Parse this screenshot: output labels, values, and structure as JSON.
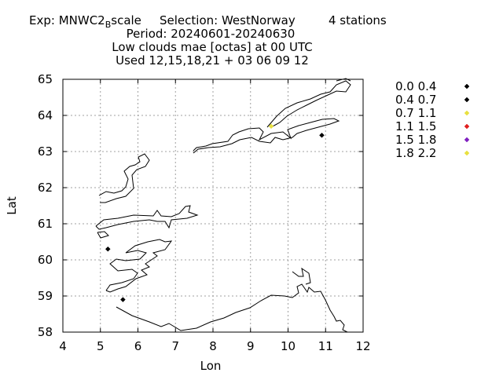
{
  "header": {
    "exp_prefix": "Exp: MNWC2",
    "exp_subscript": "B",
    "exp_suffix": "scale",
    "selection": "Selection: WestNorway",
    "stations": "4 stations",
    "period": "Period: 20240601-20240630",
    "parameter": "Low clouds mae [octas] at  00 UTC",
    "used": "Used 12,15,18,21 + 03 06 09 12"
  },
  "chart_data": {
    "type": "scatter",
    "title": "Low clouds mae [octas] at  00 UTC",
    "xlabel": "Lon",
    "ylabel": "Lat",
    "xlim": [
      4,
      12
    ],
    "ylim": [
      58,
      65
    ],
    "xticks": [
      "4",
      "5",
      "6",
      "7",
      "8",
      "9",
      "10",
      "11",
      "12"
    ],
    "yticks": [
      "58",
      "59",
      "60",
      "61",
      "62",
      "63",
      "64",
      "65"
    ],
    "grid": true,
    "legend_position": "right",
    "legend": [
      {
        "label": "0.0 0.4",
        "color": "#000000"
      },
      {
        "label": "0.4 0.7",
        "color": "#000000"
      },
      {
        "label": "0.7 1.1",
        "color": "#e8e040"
      },
      {
        "label": "1.1 1.5",
        "color": "#e02020"
      },
      {
        "label": "1.5 1.8",
        "color": "#8020c0"
      },
      {
        "label": "1.8 2.2",
        "color": "#e8e040"
      }
    ],
    "points": [
      {
        "lon": 10.9,
        "lat": 63.45,
        "color": "#000000"
      },
      {
        "lon": 9.55,
        "lat": 63.7,
        "color": "#e8e040"
      },
      {
        "lon": 5.2,
        "lat": 60.3,
        "color": "#000000"
      },
      {
        "lon": 5.6,
        "lat": 58.9,
        "color": "#000000"
      }
    ]
  }
}
